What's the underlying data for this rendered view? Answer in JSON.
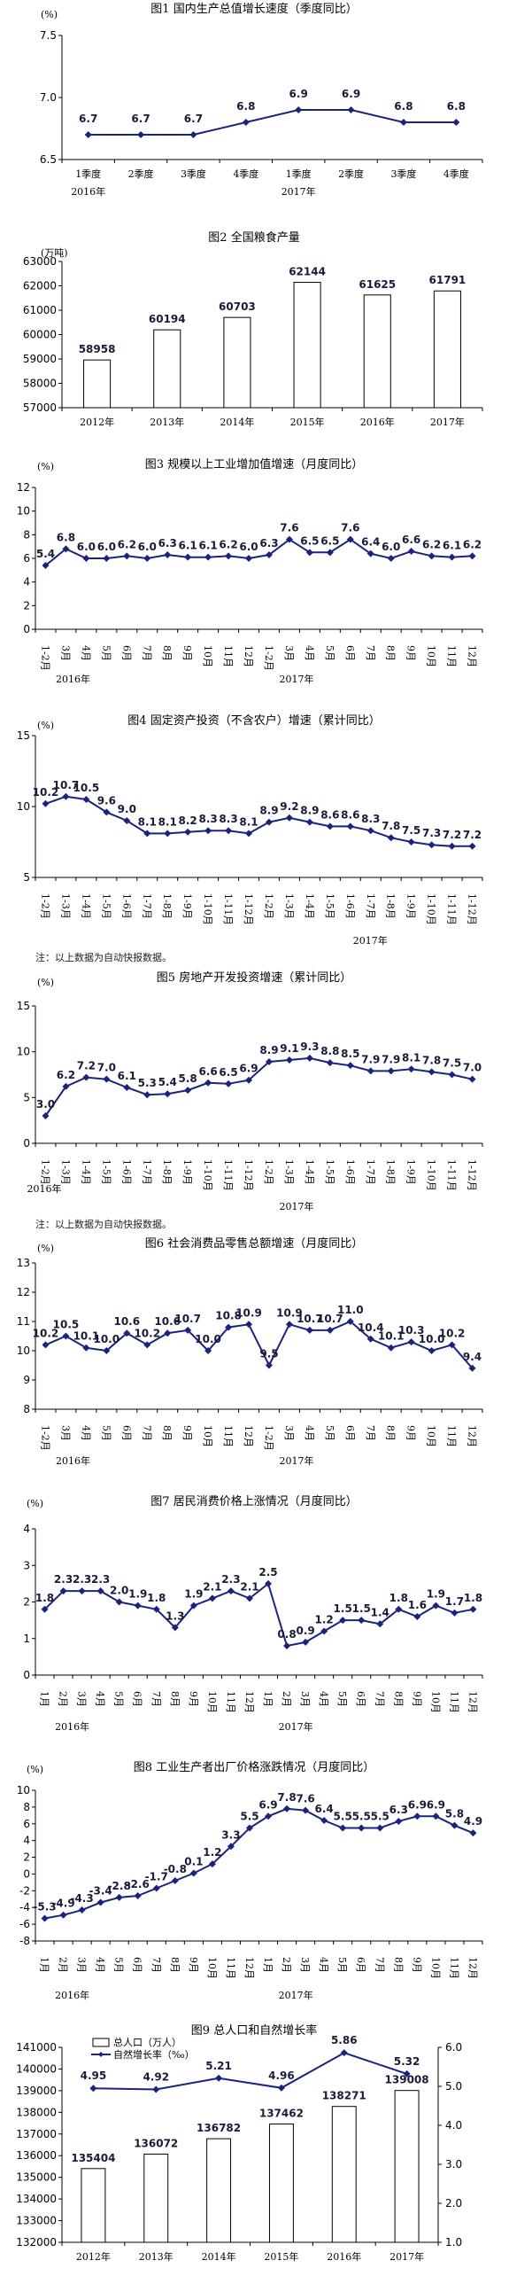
{
  "colors": {
    "line": "#1a237e",
    "marker": "#1a237e",
    "bar_fill": "#ffffff",
    "bar_stroke": "#000000",
    "axis": "#000000"
  },
  "notes": {
    "note1": "注：以上数据为自动快报数据。",
    "note2": "注：以上数据为自动快报数据。"
  },
  "chart_data": [
    {
      "type": "line",
      "title": "图1 国内生产总值增长速度（季度同比）",
      "unit": "(%)",
      "categories": [
        "1季度",
        "2季度",
        "3季度",
        "4季度",
        "1季度",
        "2季度",
        "3季度",
        "4季度"
      ],
      "groups": [
        {
          "label": "2016年",
          "start": 0,
          "end": 3
        },
        {
          "label": "2017年",
          "start": 4,
          "end": 7
        }
      ],
      "values": [
        6.7,
        6.7,
        6.7,
        6.8,
        6.9,
        6.9,
        6.8,
        6.8
      ],
      "ylim": [
        6.5,
        7.5
      ],
      "yticks": [
        "6.5",
        "7.0",
        "7.5"
      ],
      "grid": false
    },
    {
      "type": "bar",
      "title": "图2 全国粮食产量",
      "unit": "(万吨)",
      "categories": [
        "2012年",
        "2013年",
        "2014年",
        "2015年",
        "2016年",
        "2017年"
      ],
      "values": [
        58958,
        60194,
        60703,
        62144,
        61625,
        61791
      ],
      "ylim": [
        57000,
        63000
      ],
      "yticks": [
        "57000",
        "58000",
        "59000",
        "60000",
        "61000",
        "62000",
        "63000"
      ],
      "grid": false
    },
    {
      "type": "line",
      "title": "图3 规模以上工业增加值增速（月度同比）",
      "unit": "(%)",
      "categories": [
        "1-2月",
        "3月",
        "4月",
        "5月",
        "6月",
        "7月",
        "8月",
        "9月",
        "10月",
        "11月",
        "12月",
        "1-2月",
        "3月",
        "4月",
        "5月",
        "6月",
        "7月",
        "8月",
        "9月",
        "10月",
        "11月",
        "12月"
      ],
      "groups": [
        {
          "label": "2016年",
          "start": 0,
          "end": 10
        },
        {
          "label": "2017年",
          "start": 11,
          "end": 21
        }
      ],
      "values": [
        5.4,
        6.8,
        6.0,
        6.0,
        6.2,
        6.0,
        6.3,
        6.1,
        6.1,
        6.2,
        6.0,
        6.3,
        7.6,
        6.5,
        6.5,
        7.6,
        6.4,
        6.0,
        6.6,
        6.2,
        6.1,
        6.2
      ],
      "labels": [
        "5.4",
        "6.8",
        "6.0",
        "6.0",
        "6.2",
        "6.0",
        "6.3",
        "6.1",
        "6.1",
        "6.2",
        "6.0",
        "6.3",
        "7.6",
        "6.5",
        "6.5",
        "7.6",
        "6.4",
        "6.0",
        "6.6",
        "6.2",
        "6.1",
        "6.2"
      ],
      "ylim": [
        0,
        12
      ],
      "yticks": [
        "0",
        "2",
        "4",
        "6",
        "8",
        "10",
        "12"
      ],
      "grid": false
    },
    {
      "type": "line",
      "title": "图4 固定资产投资（不含农户）增速（累计同比）",
      "unit": "(%)",
      "categories": [
        "1-2月",
        "1-3月",
        "1-4月",
        "1-5月",
        "1-6月",
        "1-7月",
        "1-8月",
        "1-9月",
        "1-10月",
        "1-11月",
        "1-12月",
        "1-2月",
        "1-3月",
        "1-4月",
        "1-5月",
        "1-6月",
        "1-7月",
        "1-8月",
        "1-9月",
        "1-10月",
        "1-11月",
        "1-12月"
      ],
      "groups": [
        {
          "label": "2017年",
          "start": 11,
          "end": 21
        }
      ],
      "values": [
        10.2,
        10.7,
        10.5,
        9.6,
        9.0,
        8.1,
        8.1,
        8.2,
        8.3,
        8.3,
        8.1,
        8.9,
        9.2,
        8.9,
        8.6,
        8.6,
        8.3,
        7.8,
        7.5,
        7.3,
        7.2,
        7.2
      ],
      "labels": [
        "10.2",
        "10.7",
        "10.5",
        "9.6",
        "9.0",
        "8.1",
        "8.1",
        "8.2",
        "8.3",
        "8.3",
        "8.1",
        "8.9",
        "9.2",
        "8.9",
        "8.6",
        "8.6",
        "8.3",
        "7.8",
        "7.5",
        "7.3",
        "7.2",
        "7.2"
      ],
      "ylim": [
        5,
        15
      ],
      "yticks": [
        "5",
        "10",
        "15"
      ],
      "grid": false
    },
    {
      "type": "line",
      "title": "图5 房地产开发投资增速（累计同比）",
      "unit": "(%)",
      "categories": [
        "1-2月",
        "1-3月",
        "1-4月",
        "1-5月",
        "1-6月",
        "1-7月",
        "1-8月",
        "1-9月",
        "1-10月",
        "1-11月",
        "1-12月",
        "1-2月",
        "1-3月",
        "1-4月",
        "1-5月",
        "1-6月",
        "1-7月",
        "1-8月",
        "1-9月",
        "1-10月",
        "1-11月",
        "1-12月"
      ],
      "groups": [
        {
          "label": "2016年",
          "start": 0,
          "end": 0
        },
        {
          "label": "2017年",
          "start": 11,
          "end": 21
        }
      ],
      "values": [
        3.0,
        6.2,
        7.2,
        7.0,
        6.1,
        5.3,
        5.4,
        5.8,
        6.6,
        6.5,
        6.9,
        8.9,
        9.1,
        9.3,
        8.8,
        8.5,
        7.9,
        7.9,
        8.1,
        7.8,
        7.5,
        7.0
      ],
      "labels": [
        "3.0",
        "6.2",
        "7.2",
        "7.0",
        "6.1",
        "5.3",
        "5.4",
        "5.8",
        "6.6",
        "6.5",
        "6.9",
        "8.9",
        "9.1",
        "9.3",
        "8.8",
        "8.5",
        "7.9",
        "7.9",
        "8.1",
        "7.8",
        "7.5",
        "7.0"
      ],
      "ylim": [
        0,
        15
      ],
      "yticks": [
        "0",
        "5",
        "10",
        "15"
      ],
      "grid": false
    },
    {
      "type": "line",
      "title": "图6 社会消费品零售总额增速（月度同比）",
      "unit": "(%)",
      "categories": [
        "1-2月",
        "3月",
        "4月",
        "5月",
        "6月",
        "7月",
        "8月",
        "9月",
        "10月",
        "11月",
        "12月",
        "1-2月",
        "3月",
        "4月",
        "5月",
        "6月",
        "7月",
        "8月",
        "9月",
        "10月",
        "11月",
        "12月"
      ],
      "groups": [
        {
          "label": "2016年",
          "start": 0,
          "end": 10
        },
        {
          "label": "2017年",
          "start": 11,
          "end": 21
        }
      ],
      "values": [
        10.2,
        10.5,
        10.1,
        10.0,
        10.6,
        10.2,
        10.6,
        10.7,
        10.0,
        10.8,
        10.9,
        9.5,
        10.9,
        10.7,
        10.7,
        11.0,
        10.4,
        10.1,
        10.3,
        10.0,
        10.2,
        9.4
      ],
      "labels": [
        "10.2",
        "10.5",
        "10.1",
        "10.0",
        "10.6",
        "10.2",
        "10.6",
        "10.7",
        "10.0",
        "10.8",
        "10.9",
        "9.5",
        "10.9",
        "10.7",
        "10.7",
        "11.0",
        "10.4",
        "10.1",
        "10.3",
        "10.0",
        "10.2",
        "9.4"
      ],
      "ylim": [
        8,
        13
      ],
      "yticks": [
        "8",
        "9",
        "10",
        "11",
        "12",
        "13"
      ],
      "grid": false
    },
    {
      "type": "line",
      "title": "图7 居民消费价格上涨情况（月度同比）",
      "unit": "(%)",
      "categories": [
        "1月",
        "2月",
        "3月",
        "4月",
        "5月",
        "6月",
        "7月",
        "8月",
        "9月",
        "10月",
        "11月",
        "12月",
        "1月",
        "2月",
        "3月",
        "4月",
        "5月",
        "6月",
        "7月",
        "8月",
        "9月",
        "10月",
        "11月",
        "12月"
      ],
      "groups": [
        {
          "label": "2016年",
          "start": 0,
          "end": 11
        },
        {
          "label": "2017年",
          "start": 12,
          "end": 23
        }
      ],
      "values": [
        1.8,
        2.3,
        2.3,
        2.3,
        2.0,
        1.9,
        1.8,
        1.3,
        1.9,
        2.1,
        2.3,
        2.1,
        2.5,
        0.8,
        0.9,
        1.2,
        1.5,
        1.5,
        1.4,
        1.8,
        1.6,
        1.9,
        1.7,
        1.8
      ],
      "labels": [
        "1.8",
        "2.3",
        "2.3",
        "2.3",
        "2.0",
        "1.9",
        "1.8",
        "1.3",
        "1.9",
        "2.1",
        "2.3",
        "2.1",
        "2.5",
        "0.8",
        "0.9",
        "1.2",
        "1.5",
        "1.5",
        "1.4",
        "1.8",
        "1.6",
        "1.9",
        "1.7",
        "1.8"
      ],
      "ylim": [
        0,
        4
      ],
      "yticks": [
        "0",
        "1",
        "2",
        "3",
        "4"
      ],
      "grid": false
    },
    {
      "type": "line",
      "title": "图8 工业生产者出厂价格涨跌情况（月度同比）",
      "unit": "(%)",
      "categories": [
        "1月",
        "2月",
        "3月",
        "4月",
        "5月",
        "6月",
        "7月",
        "8月",
        "9月",
        "10月",
        "11月",
        "12月",
        "1月",
        "2月",
        "3月",
        "4月",
        "5月",
        "6月",
        "7月",
        "8月",
        "9月",
        "10月",
        "11月",
        "12月"
      ],
      "groups": [
        {
          "label": "2016年",
          "start": 0,
          "end": 11
        },
        {
          "label": "2017年",
          "start": 12,
          "end": 23
        }
      ],
      "values": [
        -5.3,
        -4.9,
        -4.3,
        -3.4,
        -2.8,
        -2.6,
        -1.7,
        -0.8,
        0.1,
        1.2,
        3.3,
        5.5,
        6.9,
        7.8,
        7.6,
        6.4,
        5.5,
        5.5,
        5.5,
        6.3,
        6.9,
        6.9,
        5.8,
        4.9
      ],
      "labels": [
        "-5.3",
        "-4.9",
        "-4.3",
        "-3.4",
        "-2.8",
        "-2.6",
        "-1.7",
        "-0.8",
        "0.1",
        "1.2",
        "3.3",
        "5.5",
        "6.9",
        "7.8",
        "7.6",
        "6.4",
        "5.5",
        "5.5",
        "5.5",
        "6.3",
        "6.9",
        "6.9",
        "5.8",
        "4.9"
      ],
      "ylim": [
        -8,
        10
      ],
      "yticks": [
        "-8",
        "-6",
        "-4",
        "-2",
        "0",
        "2",
        "4",
        "6",
        "8",
        "10"
      ],
      "grid": false
    },
    {
      "type": "bar",
      "title": "图9 总人口和自然增长率",
      "categories": [
        "2012年",
        "2013年",
        "2014年",
        "2015年",
        "2016年",
        "2017年"
      ],
      "series": [
        {
          "name": "总人口（万人）",
          "values": [
            135404,
            136072,
            136782,
            137462,
            138271,
            139008
          ]
        },
        {
          "name": "自然增长率（‰）",
          "values": [
            4.95,
            4.92,
            5.21,
            4.96,
            5.86,
            5.32
          ]
        }
      ],
      "ylim": [
        132000,
        141000
      ],
      "yticks": [
        "132000",
        "133000",
        "134000",
        "135000",
        "136000",
        "137000",
        "138000",
        "139000",
        "140000",
        "141000"
      ],
      "y2lim": [
        1.0,
        6.0
      ],
      "y2ticks": [
        "1.0",
        "2.0",
        "3.0",
        "4.0",
        "5.0",
        "6.0"
      ],
      "legend": "top-left",
      "grid": false
    }
  ]
}
